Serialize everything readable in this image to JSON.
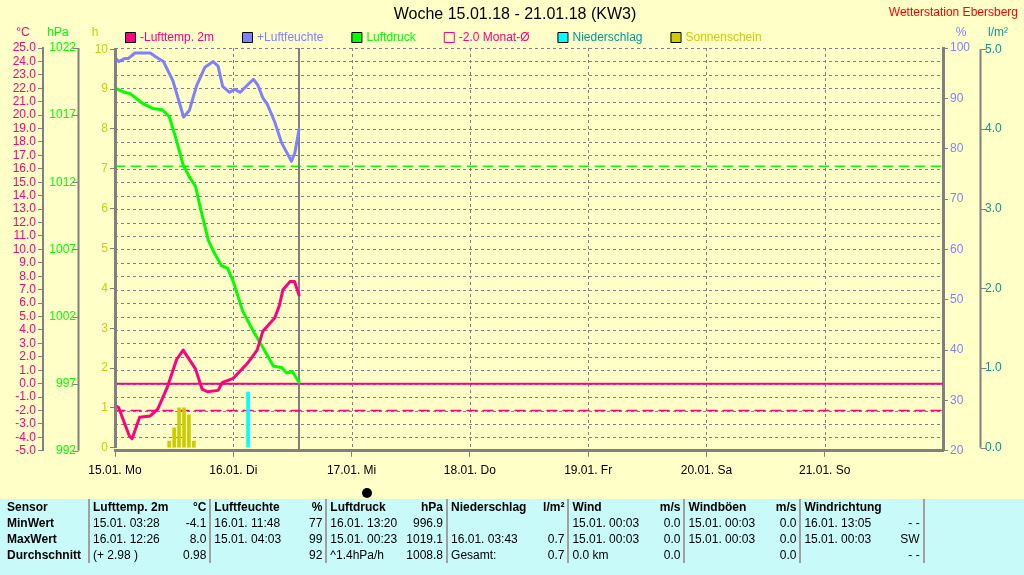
{
  "chart_data": [
    {
      "type": "line",
      "title": "Woche 15.01.18 - 21.01.18 (KW3)",
      "annotations": [
        "Wetterstation Ebersberg"
      ],
      "ylabel": "°C",
      "y3label": "hPa",
      "y2label": "%",
      "xlim": [
        "--01-15",
        "--01-22"
      ],
      "xticks": [
        {
          "value": "--01-15",
          "label": "15.01. Mo"
        },
        {
          "value": "--01-16",
          "label": "16.01. Di"
        },
        {
          "value": "--01-17",
          "label": "17.01. Mi"
        },
        {
          "value": "--01-18",
          "label": "18.01. Do"
        },
        {
          "value": "--01-19",
          "label": "19.01. Fr"
        },
        {
          "value": "--01-20",
          "label": "20.01. Sa"
        },
        {
          "value": "--01-21",
          "label": "21.01. So"
        }
      ],
      "ylim": [
        -5,
        25
      ],
      "yticks": [
        {
          "value": -5,
          "label": "-5.0"
        },
        {
          "value": -4,
          "label": "-4.0"
        },
        {
          "value": -3,
          "label": "-3.0"
        },
        {
          "value": -2,
          "label": "-2.0"
        },
        {
          "value": -1,
          "label": "-1.0"
        },
        {
          "value": 0,
          "label": "0.0"
        },
        {
          "value": 1,
          "label": "1.0"
        },
        {
          "value": 2,
          "label": "2.0"
        },
        {
          "value": 3,
          "label": "3.0"
        },
        {
          "value": 4,
          "label": "4.0"
        },
        {
          "value": 5,
          "label": "5.0"
        },
        {
          "value": 6,
          "label": "6.0"
        },
        {
          "value": 7,
          "label": "7.0"
        },
        {
          "value": 8,
          "label": "8.0"
        },
        {
          "value": 9,
          "label": "9.0"
        },
        {
          "value": 10,
          "label": "10.0"
        },
        {
          "value": 11,
          "label": "11.0"
        },
        {
          "value": 12,
          "label": "12.0"
        },
        {
          "value": 13,
          "label": "13.0"
        },
        {
          "value": 14,
          "label": "14.0"
        },
        {
          "value": 15,
          "label": "15.0"
        },
        {
          "value": 16,
          "label": "16.0"
        },
        {
          "value": 17,
          "label": "17.0"
        },
        {
          "value": 18,
          "label": "18.0"
        },
        {
          "value": 19,
          "label": "19.0"
        },
        {
          "value": 20,
          "label": "20.0"
        },
        {
          "value": 21,
          "label": "21.0"
        },
        {
          "value": 22,
          "label": "22.0"
        },
        {
          "value": 23,
          "label": "23.0"
        },
        {
          "value": 24,
          "label": "24.0"
        },
        {
          "value": 25,
          "label": "25.0"
        }
      ],
      "y3lim": [
        992,
        1022
      ],
      "y3ticks": [
        992,
        997,
        1002,
        1007,
        1012,
        1017,
        1022
      ],
      "y2lim": [
        20,
        100
      ],
      "y2ticks": [
        20,
        30,
        40,
        50,
        60,
        70,
        80,
        90,
        100
      ],
      "grid": true,
      "legend": "top",
      "marker": "none",
      "line_style": "solid",
      "ref_lines": [
        {
          "axis": "y",
          "value": 0,
          "color": "#ff0080"
        },
        {
          "axis": "y3",
          "value": 1013.2,
          "color": "#00ff00",
          "line_style": "dashed"
        },
        {
          "axis": "x",
          "value": "--01-16T13:20",
          "color": "#808080"
        }
      ],
      "series": [
        {
          "name": "-Lufttemp. 2m",
          "color": "#ff0080",
          "x": [
            "--01-15T00:00",
            "--01-15T00:45",
            "--01-15T02:55",
            "--01-15T03:28",
            "--01-15T05:00",
            "--01-15T07:10",
            "--01-15T08:40",
            "--01-15T10:35",
            "--01-15T12:30",
            "--01-15T13:50",
            "--01-15T16:20",
            "--01-15T17:40",
            "--01-15T18:45",
            "--01-15T20:55",
            "--01-15T21:50",
            "--01-16T00:00",
            "--01-16T02:50",
            "--01-16T04:50",
            "--01-16T06:00",
            "--01-16T08:25",
            "--01-16T09:20",
            "--01-16T10:05",
            "--01-16T11:30",
            "--01-16T12:26",
            "--01-16T13:20"
          ],
          "values": [
            -1.6,
            -1.8,
            -3.9,
            -4.1,
            -2.5,
            -2.4,
            -1.9,
            -0.3,
            1.8,
            2.5,
            1.1,
            -0.4,
            -0.6,
            -0.5,
            0.1,
            0.4,
            1.5,
            2.5,
            3.9,
            4.9,
            5.8,
            7.0,
            7.6,
            7.6,
            6.6
          ]
        },
        {
          "name": "+Luftfeuchte",
          "color": "#8080ff",
          "axis": "y2",
          "x": [
            "--01-15T00:00",
            "--01-15T00:45",
            "--01-15T01:55",
            "--01-15T02:40",
            "--01-15T04:03",
            "--01-15T07:10",
            "--01-15T08:10",
            "--01-15T09:50",
            "--01-15T11:45",
            "--01-15T13:55",
            "--01-15T15:05",
            "--01-15T16:35",
            "--01-15T18:15",
            "--01-15T19:55",
            "--01-15T20:55",
            "--01-15T21:50",
            "--01-15T23:15",
            "--01-16T00:15",
            "--01-16T01:25",
            "--01-16T02:50",
            "--01-16T04:05",
            "--01-16T05:00",
            "--01-16T06:00",
            "--01-16T06:55",
            "--01-16T08:25",
            "--01-16T09:50",
            "--01-16T11:48",
            "--01-16T12:30",
            "--01-16T13:20"
          ],
          "values": [
            98.1,
            97.3,
            97.9,
            97.9,
            99,
            99,
            98.3,
            97.3,
            93.5,
            86.3,
            87.6,
            92.6,
            96.2,
            97.3,
            96.4,
            92.4,
            91.2,
            91.8,
            91.2,
            92.6,
            93.8,
            92.6,
            90.1,
            88.8,
            85.3,
            81.1,
            77.5,
            79.2,
            83.8
          ]
        },
        {
          "name": "Luftdruck",
          "color": "#00ff00",
          "axis": "y3",
          "x": [
            "--01-15T00:00",
            "--01-15T00:45",
            "--01-15T01:55",
            "--01-15T03:05",
            "--01-15T05:30",
            "--01-15T07:40",
            "--01-15T09:35",
            "--01-15T11:00",
            "--01-15T12:15",
            "--01-15T13:50",
            "--01-15T15:05",
            "--01-15T16:20",
            "--01-15T17:15",
            "--01-15T18:55",
            "--01-15T19:55",
            "--01-15T21:35",
            "--01-15T22:50",
            "--01-16T00:00",
            "--01-16T01:55",
            "--01-16T04:05",
            "--01-16T06:00",
            "--01-16T08:10",
            "--01-16T09:50",
            "--01-16T10:50",
            "--01-16T12:00",
            "--01-16T13:20"
          ],
          "values": [
            1019.0,
            1018.9,
            1018.7,
            1018.6,
            1017.9,
            1017.5,
            1017.4,
            1016.9,
            1015.4,
            1013.3,
            1012.4,
            1011.7,
            1010.2,
            1007.7,
            1006.9,
            1005.8,
            1005.6,
            1004.6,
            1002.4,
            1000.9,
            999.7,
            998.3,
            998.2,
            997.8,
            997.9,
            997.1
          ]
        },
        {
          "name": "-2.0 Monat-Ø",
          "color": "#ff0080",
          "line_style": "dashed",
          "x": [
            "--01-15T00:00",
            "--01-22T00:00"
          ],
          "values": [
            -2,
            -2
          ]
        }
      ]
    },
    {
      "type": "bar",
      "tick_labels": "y",
      "legend": "top",
      "ylabel": "h",
      "y2label": "l/m²",
      "xlim": [
        "--01-15",
        "--01-22"
      ],
      "ylim": [
        0,
        10
      ],
      "yticks": [
        0,
        1,
        2,
        3,
        4,
        5,
        6,
        7,
        8,
        9,
        10
      ],
      "y2lim": [
        0,
        5
      ],
      "y2ticks": [
        {
          "value": 0,
          "label": "0.0"
        },
        {
          "value": 1,
          "label": "1.0"
        },
        {
          "value": 2,
          "label": "2.0"
        },
        {
          "value": 3,
          "label": "3.0"
        },
        {
          "value": 4,
          "label": "4.0"
        },
        {
          "value": 5,
          "label": "5.0"
        }
      ],
      "series": [
        {
          "name": "Niederschlag",
          "color": "#00ffff",
          "axis": "y2",
          "x": [
            "--01-16T03:00"
          ],
          "values": [
            0.7
          ]
        },
        {
          "name": "Sonnenschein",
          "color": "#cccc00",
          "x": [
            "--01-15T11:00",
            "--01-15T12:00",
            "--01-15T13:00",
            "--01-15T14:00",
            "--01-15T15:00",
            "--01-15T16:00"
          ],
          "values": [
            0.17,
            0.5,
            1.0,
            1.0,
            0.83,
            0.17
          ]
        }
      ]
    },
    {
      "type": "other",
      "cell_labels": [
        [
          "Sensor",
          "Lufttemp. 2m",
          "°C",
          "Luftfeuchte",
          "%",
          "Luftdruck",
          "hPa",
          "Niederschlag",
          "l/m²",
          "Wind",
          "m/s",
          "Windböen",
          "m/s",
          "Windrichtung",
          null
        ],
        [
          "MinWert",
          "15.01.  03:28",
          "-4.1",
          "16.01.  11:48",
          "77",
          "16.01.  13:20",
          "996.9",
          null,
          null,
          "15.01.  00:03",
          "0.0",
          "15.01.  00:03",
          "0.0",
          "16.01.  13:05",
          "- -"
        ],
        [
          "MaxWert",
          "16.01.  12:26",
          "8.0",
          "15.01.  04:03",
          "99",
          "15.01.  00:23",
          "1019.1",
          "16.01.  03:43",
          "0.7",
          "15.01.  00:03",
          "0.0",
          "15.01.  00:03",
          "0.0",
          "15.01.  00:03",
          "SW"
        ],
        [
          "Durchschnitt",
          "(+ 2.98 )",
          "0.98",
          null,
          "92",
          "^1.4hPa/h",
          "1008.8",
          "Gesamt:",
          "0.7",
          "0.0 km",
          "0.0",
          null,
          "0.0",
          null,
          "- -"
        ]
      ]
    }
  ]
}
